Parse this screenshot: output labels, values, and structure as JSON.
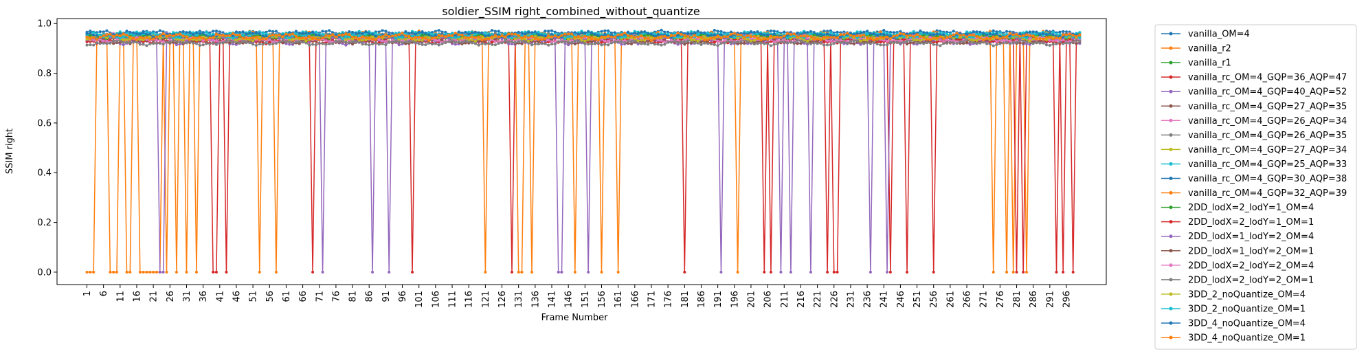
{
  "chart_data": {
    "type": "line",
    "title": "soldier_SSIM right_combined_without_quantize",
    "xlabel": "Frame Number",
    "ylabel": "SSIM right",
    "xlim": [
      -8,
      308
    ],
    "ylim": [
      -0.05,
      1.02
    ],
    "xticks": [
      1,
      6,
      11,
      16,
      21,
      26,
      31,
      36,
      41,
      46,
      51,
      56,
      61,
      66,
      71,
      76,
      81,
      86,
      91,
      96,
      101,
      106,
      111,
      116,
      121,
      126,
      131,
      136,
      141,
      146,
      151,
      156,
      161,
      166,
      171,
      176,
      181,
      186,
      191,
      196,
      201,
      206,
      211,
      216,
      221,
      226,
      231,
      236,
      241,
      246,
      251,
      256,
      261,
      266,
      271,
      276,
      281,
      286,
      291,
      296
    ],
    "yticks": [
      0.0,
      0.2,
      0.4,
      0.6,
      0.8,
      1.0
    ],
    "ytick_labels": [
      "0.0",
      "0.2",
      "0.4",
      "0.6",
      "0.8",
      "1.0"
    ],
    "grid": false,
    "legend_position": "outside-right",
    "frames": {
      "start": 1,
      "end": 300
    },
    "series": [
      {
        "name": "vanilla_OM=4",
        "color": "#1f77b4",
        "base": 0.962,
        "amp": 0.006,
        "drops": []
      },
      {
        "name": "vanilla_r2",
        "color": "#ff7f0e",
        "base": 0.955,
        "amp": 0.008,
        "drops": [
          1,
          2,
          3,
          8,
          9,
          10,
          13,
          14,
          17,
          18,
          19,
          20,
          21,
          22,
          23,
          25,
          28,
          31,
          34,
          53,
          58,
          121,
          131,
          132,
          135,
          148,
          156,
          161,
          197,
          274,
          278,
          280,
          284
        ]
      },
      {
        "name": "vanilla_r1",
        "color": "#2ca02c",
        "base": 0.95,
        "amp": 0.007,
        "drops": []
      },
      {
        "name": "vanilla_rc_OM=4_GQP=36_AQP=47",
        "color": "#d62728",
        "base": 0.935,
        "amp": 0.006,
        "drops": [
          39,
          40,
          43,
          69,
          99,
          129,
          181,
          205,
          207,
          224,
          226,
          227,
          243,
          248,
          256,
          281,
          283,
          293,
          295,
          298
        ]
      },
      {
        "name": "vanilla_rc_OM=4_GQP=40_AQP=52",
        "color": "#9467bd",
        "base": 0.925,
        "amp": 0.006,
        "drops": [
          23,
          24,
          72,
          87,
          92,
          143,
          144,
          152,
          192,
          210,
          213,
          219,
          237,
          242
        ]
      },
      {
        "name": "vanilla_rc_OM=4_GQP=27_AQP=35",
        "color": "#8c564b",
        "base": 0.948,
        "amp": 0.006,
        "drops": []
      },
      {
        "name": "vanilla_rc_OM=4_GQP=26_AQP=34",
        "color": "#e377c2",
        "base": 0.952,
        "amp": 0.006,
        "drops": []
      },
      {
        "name": "vanilla_rc_OM=4_GQP=26_AQP=35",
        "color": "#7f7f7f",
        "base": 0.95,
        "amp": 0.006,
        "drops": []
      },
      {
        "name": "vanilla_rc_OM=4_GQP=27_AQP=34",
        "color": "#bcbd22",
        "base": 0.949,
        "amp": 0.006,
        "drops": []
      },
      {
        "name": "vanilla_rc_OM=4_GQP=25_AQP=33",
        "color": "#17becf",
        "base": 0.958,
        "amp": 0.006,
        "drops": []
      },
      {
        "name": "vanilla_rc_OM=4_GQP=30_AQP=38",
        "color": "#1f77b4",
        "base": 0.944,
        "amp": 0.006,
        "drops": []
      },
      {
        "name": "vanilla_rc_OM=4_GQP=32_AQP=39",
        "color": "#ff7f0e",
        "base": 0.94,
        "amp": 0.006,
        "drops": []
      },
      {
        "name": "2DD_lodX=2_lodY=1_OM=4",
        "color": "#2ca02c",
        "base": 0.945,
        "amp": 0.007,
        "drops": []
      },
      {
        "name": "2DD_lodX=2_lodY=1_OM=1",
        "color": "#d62728",
        "base": 0.93,
        "amp": 0.006,
        "drops": []
      },
      {
        "name": "2DD_lodX=1_lodY=2_OM=4",
        "color": "#9467bd",
        "base": 0.938,
        "amp": 0.006,
        "drops": []
      },
      {
        "name": "2DD_lodX=1_lodY=2_OM=1",
        "color": "#8c564b",
        "base": 0.928,
        "amp": 0.006,
        "drops": []
      },
      {
        "name": "2DD_lodX=2_lodY=2_OM=4",
        "color": "#e377c2",
        "base": 0.935,
        "amp": 0.006,
        "drops": []
      },
      {
        "name": "2DD_lodX=2_lodY=2_OM=1",
        "color": "#7f7f7f",
        "base": 0.922,
        "amp": 0.006,
        "drops": []
      },
      {
        "name": "3DD_2_noQuantize_OM=4",
        "color": "#bcbd22",
        "base": 0.942,
        "amp": 0.007,
        "drops": []
      },
      {
        "name": "3DD_2_noQuantize_OM=1",
        "color": "#17becf",
        "base": 0.953,
        "amp": 0.007,
        "drops": []
      },
      {
        "name": "3DD_4_noQuantize_OM=4",
        "color": "#1f77b4",
        "base": 0.957,
        "amp": 0.007,
        "drops": []
      },
      {
        "name": "3DD_4_noQuantize_OM=1",
        "color": "#ff7f0e",
        "base": 0.947,
        "amp": 0.008,
        "drops": []
      }
    ]
  }
}
